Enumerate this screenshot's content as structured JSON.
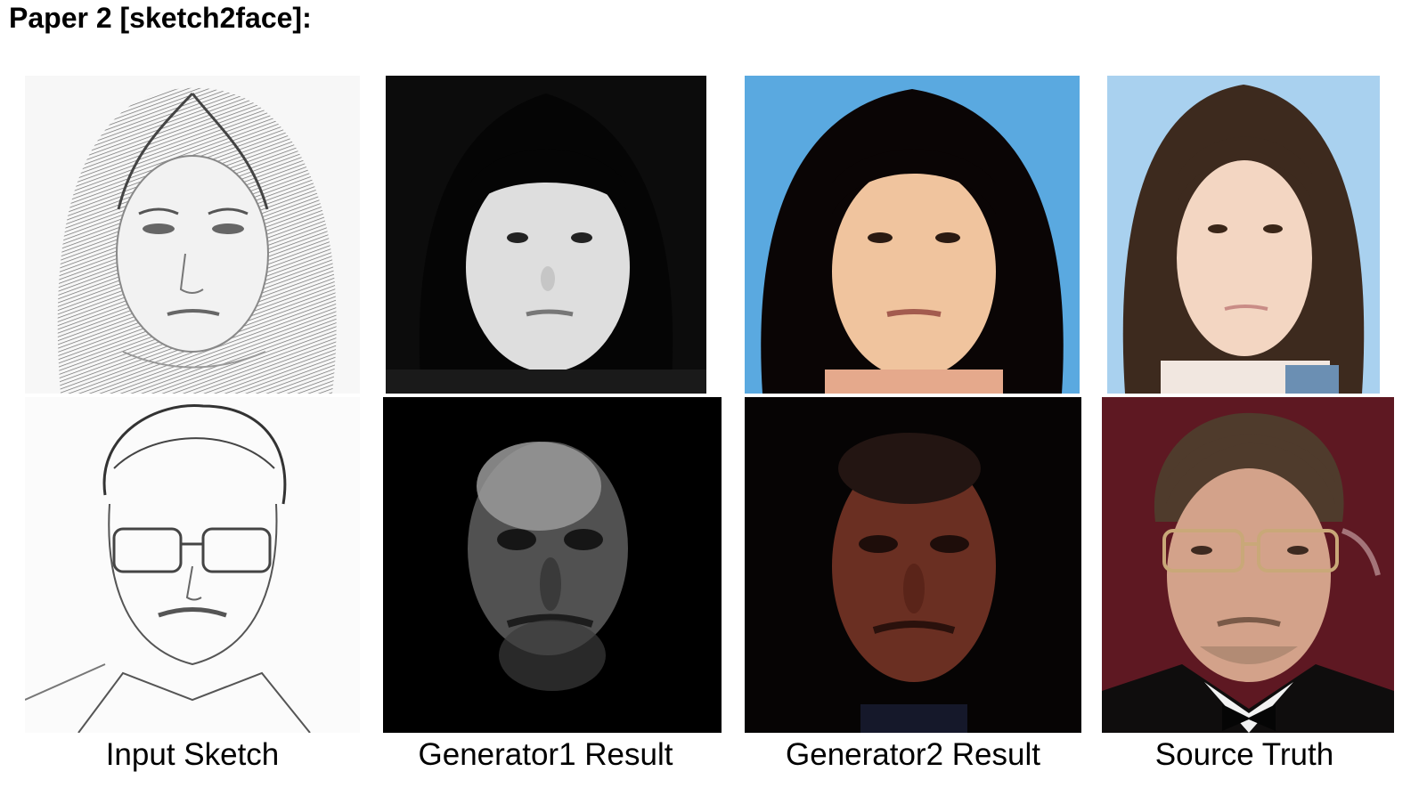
{
  "title": "Paper 2 [sketch2face]:",
  "column_labels": [
    "Input Sketch",
    "Generator1 Result",
    "Generator2 Result",
    "Source Truth"
  ],
  "rows": [
    {
      "subject": "female-face",
      "images": [
        "sketch",
        "generator1",
        "generator2",
        "photo"
      ]
    },
    {
      "subject": "male-face-glasses",
      "images": [
        "sketch",
        "generator1",
        "generator2",
        "photo"
      ]
    }
  ],
  "colors": {
    "sky_blue": "#5aa9e0",
    "light_blue": "#a9d1ef",
    "maroon": "#5e1822",
    "skin": "#f0c49e"
  }
}
